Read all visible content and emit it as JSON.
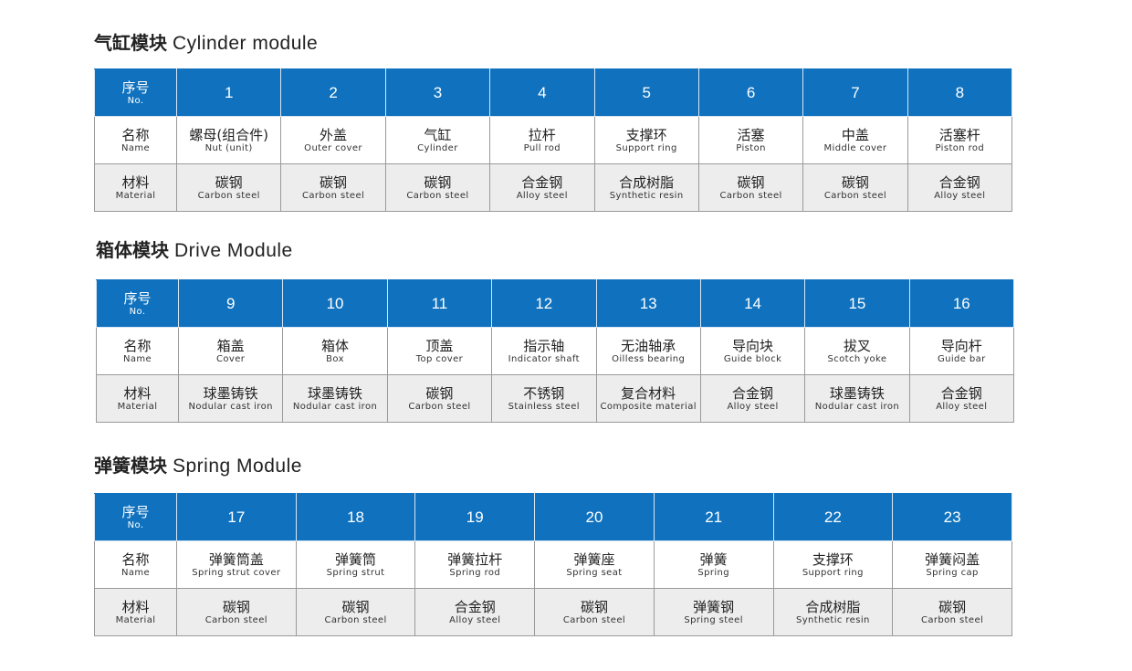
{
  "row_labels": {
    "no": {
      "zh": "序号",
      "en": "No."
    },
    "name": {
      "zh": "名称",
      "en": "Name"
    },
    "material": {
      "zh": "材料",
      "en": "Material"
    }
  },
  "colors": {
    "header": "#1072be",
    "material_row": "#ededed",
    "border": "#9a9a9a"
  },
  "sections": [
    {
      "title_zh": "气缸模块",
      "title_en": "Cylinder module",
      "columns": [
        {
          "no": "1",
          "name_zh": "螺母(组合件)",
          "name_en": "Nut (unit)",
          "mat_zh": "碳钢",
          "mat_en": "Carbon steel"
        },
        {
          "no": "2",
          "name_zh": "外盖",
          "name_en": "Outer cover",
          "mat_zh": "碳钢",
          "mat_en": "Carbon steel"
        },
        {
          "no": "3",
          "name_zh": "气缸",
          "name_en": "Cylinder",
          "mat_zh": "碳钢",
          "mat_en": "Carbon steel"
        },
        {
          "no": "4",
          "name_zh": "拉杆",
          "name_en": "Pull rod",
          "mat_zh": "合金钢",
          "mat_en": "Alloy steel"
        },
        {
          "no": "5",
          "name_zh": "支撑环",
          "name_en": "Support ring",
          "mat_zh": "合成树脂",
          "mat_en": "Synthetic resin"
        },
        {
          "no": "6",
          "name_zh": "活塞",
          "name_en": "Piston",
          "mat_zh": "碳钢",
          "mat_en": "Carbon steel"
        },
        {
          "no": "7",
          "name_zh": "中盖",
          "name_en": "Middle cover",
          "mat_zh": "碳钢",
          "mat_en": "Carbon steel"
        },
        {
          "no": "8",
          "name_zh": "活塞杆",
          "name_en": "Piston rod",
          "mat_zh": "合金钢",
          "mat_en": "Alloy steel"
        }
      ]
    },
    {
      "title_zh": "箱体模块",
      "title_en": "Drive Module",
      "columns": [
        {
          "no": "9",
          "name_zh": "箱盖",
          "name_en": "Cover",
          "mat_zh": "球墨铸铁",
          "mat_en": "Nodular cast iron"
        },
        {
          "no": "10",
          "name_zh": "箱体",
          "name_en": "Box",
          "mat_zh": "球墨铸铁",
          "mat_en": "Nodular cast iron"
        },
        {
          "no": "11",
          "name_zh": "顶盖",
          "name_en": "Top cover",
          "mat_zh": "碳钢",
          "mat_en": "Carbon steel"
        },
        {
          "no": "12",
          "name_zh": "指示轴",
          "name_en": "Indicator shaft",
          "mat_zh": "不锈钢",
          "mat_en": "Stainless steel"
        },
        {
          "no": "13",
          "name_zh": "无油轴承",
          "name_en": "Oilless bearing",
          "mat_zh": "复合材料",
          "mat_en": "Composite material"
        },
        {
          "no": "14",
          "name_zh": "导向块",
          "name_en": "Guide block",
          "mat_zh": "合金钢",
          "mat_en": "Alloy steel"
        },
        {
          "no": "15",
          "name_zh": "拔叉",
          "name_en": "Scotch yoke",
          "mat_zh": "球墨铸铁",
          "mat_en": "Nodular cast iron"
        },
        {
          "no": "16",
          "name_zh": "导向杆",
          "name_en": "Guide bar",
          "mat_zh": "合金钢",
          "mat_en": "Alloy steel"
        }
      ]
    },
    {
      "title_zh": "弹簧模块",
      "title_en": "Spring Module",
      "columns": [
        {
          "no": "17",
          "name_zh": "弹簧筒盖",
          "name_en": "Spring strut cover",
          "mat_zh": "碳钢",
          "mat_en": "Carbon steel"
        },
        {
          "no": "18",
          "name_zh": "弹簧筒",
          "name_en": "Spring strut",
          "mat_zh": "碳钢",
          "mat_en": "Carbon steel"
        },
        {
          "no": "19",
          "name_zh": "弹簧拉杆",
          "name_en": "Spring rod",
          "mat_zh": "合金钢",
          "mat_en": "Alloy steel"
        },
        {
          "no": "20",
          "name_zh": "弹簧座",
          "name_en": "Spring seat",
          "mat_zh": "碳钢",
          "mat_en": "Carbon steel"
        },
        {
          "no": "21",
          "name_zh": "弹簧",
          "name_en": "Spring",
          "mat_zh": "弹簧钢",
          "mat_en": "Spring steel"
        },
        {
          "no": "22",
          "name_zh": "支撑环",
          "name_en": "Support ring",
          "mat_zh": "合成树脂",
          "mat_en": "Synthetic resin"
        },
        {
          "no": "23",
          "name_zh": "弹簧闷盖",
          "name_en": "Spring cap",
          "mat_zh": "碳钢",
          "mat_en": "Carbon steel"
        }
      ]
    }
  ]
}
